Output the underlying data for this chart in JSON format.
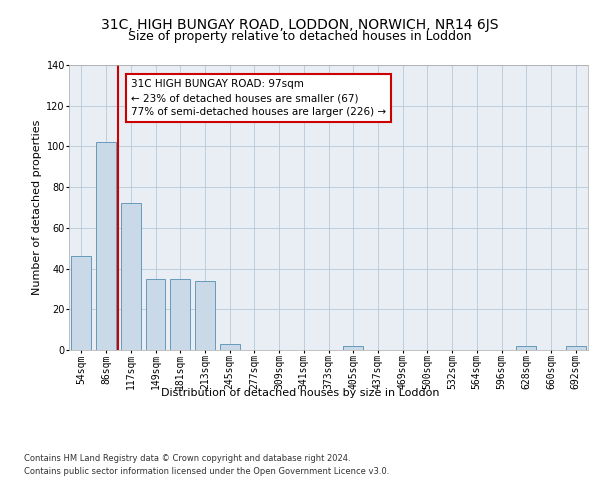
{
  "title1": "31C, HIGH BUNGAY ROAD, LODDON, NORWICH, NR14 6JS",
  "title2": "Size of property relative to detached houses in Loddon",
  "xlabel": "Distribution of detached houses by size in Loddon",
  "ylabel": "Number of detached properties",
  "bar_labels": [
    "54sqm",
    "86sqm",
    "117sqm",
    "149sqm",
    "181sqm",
    "213sqm",
    "245sqm",
    "277sqm",
    "309sqm",
    "341sqm",
    "373sqm",
    "405sqm",
    "437sqm",
    "469sqm",
    "500sqm",
    "532sqm",
    "564sqm",
    "596sqm",
    "628sqm",
    "660sqm",
    "692sqm"
  ],
  "bar_values": [
    46,
    102,
    72,
    35,
    35,
    34,
    3,
    0,
    0,
    0,
    0,
    2,
    0,
    0,
    0,
    0,
    0,
    0,
    2,
    0,
    2
  ],
  "bar_color": "#c9d9e8",
  "bar_edge_color": "#6699bb",
  "vline_x": 1.5,
  "vline_color": "#cc0000",
  "annotation_text": "31C HIGH BUNGAY ROAD: 97sqm\n← 23% of detached houses are smaller (67)\n77% of semi-detached houses are larger (226) →",
  "annotation_box_color": "#ffffff",
  "annotation_box_edge": "#cc0000",
  "ylim": [
    0,
    140
  ],
  "yticks": [
    0,
    20,
    40,
    60,
    80,
    100,
    120,
    140
  ],
  "bg_color": "#e8eef4",
  "footer": "Contains HM Land Registry data © Crown copyright and database right 2024.\nContains public sector information licensed under the Open Government Licence v3.0.",
  "title1_fontsize": 10,
  "title2_fontsize": 9,
  "annot_fontsize": 7.5,
  "ylabel_fontsize": 8,
  "xlabel_fontsize": 8,
  "tick_fontsize": 7,
  "footer_fontsize": 6
}
